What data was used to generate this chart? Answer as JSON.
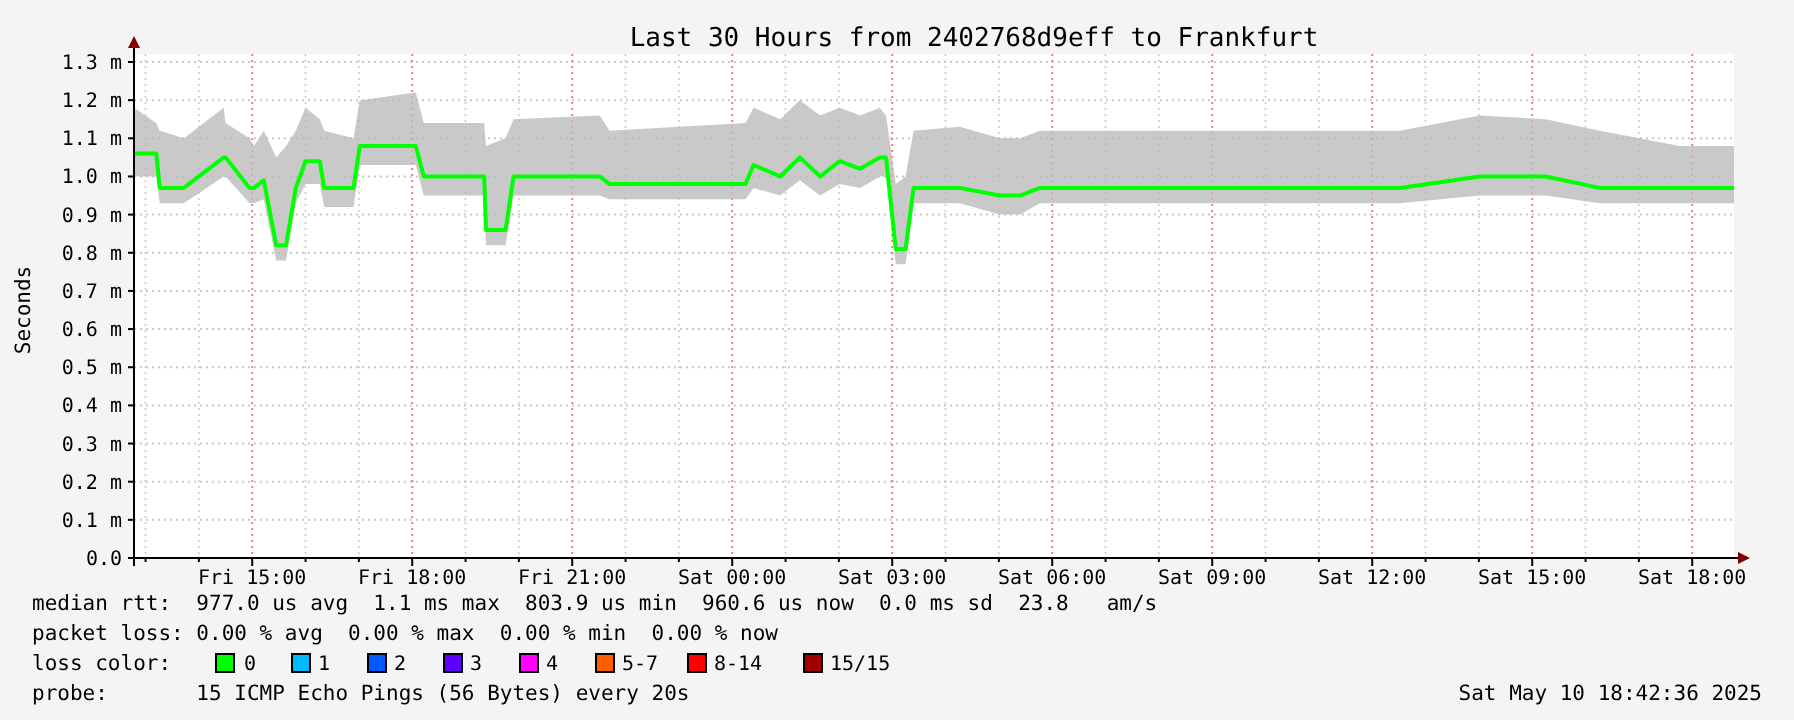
{
  "chart_data": {
    "type": "line",
    "title": "Last 30 Hours from 2402768d9eff to Frankfurt",
    "ylabel": "Seconds",
    "x": [
      "2025-05-09T12:47",
      "2025-05-09T13:12",
      "2025-05-09T13:16",
      "2025-05-09T13:43",
      "2025-05-09T14:28",
      "2025-05-09T14:30",
      "2025-05-09T14:57",
      "2025-05-09T15:02",
      "2025-05-09T15:13",
      "2025-05-09T15:27",
      "2025-05-09T15:38",
      "2025-05-09T15:49",
      "2025-05-09T16:00",
      "2025-05-09T16:16",
      "2025-05-09T16:21",
      "2025-05-09T16:54",
      "2025-05-09T17:01",
      "2025-05-09T18:04",
      "2025-05-09T18:13",
      "2025-05-09T19:21",
      "2025-05-09T19:23",
      "2025-05-09T19:45",
      "2025-05-09T19:54",
      "2025-05-09T21:31",
      "2025-05-09T21:42",
      "2025-05-10T00:15",
      "2025-05-10T00:24",
      "2025-05-10T00:54",
      "2025-05-10T01:16",
      "2025-05-10T01:39",
      "2025-05-10T02:01",
      "2025-05-10T02:24",
      "2025-05-10T02:46",
      "2025-05-10T02:53",
      "2025-05-10T03:04",
      "2025-05-10T03:15",
      "2025-05-10T03:24",
      "2025-05-10T04:16",
      "2025-05-10T05:01",
      "2025-05-10T05:24",
      "2025-05-10T05:46",
      "2025-05-10T07:16",
      "2025-05-10T08:46",
      "2025-05-10T10:16",
      "2025-05-10T12:31",
      "2025-05-10T14:01",
      "2025-05-10T15:15",
      "2025-05-10T16:16",
      "2025-05-10T17:46",
      "2025-05-10T18:47"
    ],
    "series": [
      {
        "name": "0",
        "color": "#00ff00",
        "values": [
          1.06,
          1.06,
          0.97,
          0.97,
          1.05,
          1.05,
          0.97,
          0.97,
          0.99,
          0.82,
          0.82,
          0.97,
          1.04,
          1.04,
          0.97,
          0.97,
          1.08,
          1.08,
          1.0,
          1.0,
          0.86,
          0.86,
          1.0,
          1.0,
          0.98,
          0.98,
          1.03,
          1.0,
          1.05,
          1.0,
          1.04,
          1.02,
          1.05,
          1.05,
          0.81,
          0.81,
          0.97,
          0.97,
          0.95,
          0.95,
          0.97,
          0.97,
          0.97,
          0.97,
          0.97,
          1.0,
          1.0,
          0.97,
          0.97,
          0.97
        ],
        "lower": [
          1.0,
          1.0,
          0.93,
          0.93,
          1.0,
          1.0,
          0.93,
          0.93,
          0.94,
          0.78,
          0.78,
          0.93,
          0.98,
          0.98,
          0.92,
          0.92,
          1.03,
          1.03,
          0.95,
          0.95,
          0.82,
          0.82,
          0.95,
          0.95,
          0.94,
          0.94,
          0.97,
          0.95,
          0.99,
          0.95,
          0.98,
          0.97,
          1.0,
          1.0,
          0.77,
          0.77,
          0.93,
          0.93,
          0.9,
          0.9,
          0.93,
          0.93,
          0.93,
          0.93,
          0.93,
          0.95,
          0.95,
          0.93,
          0.93,
          0.93
        ],
        "upper": [
          1.18,
          1.14,
          1.12,
          1.1,
          1.18,
          1.14,
          1.1,
          1.08,
          1.12,
          1.05,
          1.08,
          1.12,
          1.18,
          1.15,
          1.12,
          1.1,
          1.2,
          1.22,
          1.14,
          1.14,
          1.08,
          1.1,
          1.15,
          1.16,
          1.12,
          1.14,
          1.18,
          1.15,
          1.2,
          1.16,
          1.18,
          1.16,
          1.18,
          1.16,
          0.98,
          1.0,
          1.12,
          1.13,
          1.1,
          1.1,
          1.12,
          1.12,
          1.12,
          1.12,
          1.12,
          1.16,
          1.15,
          1.12,
          1.08,
          1.08
        ]
      }
    ],
    "xlim": [
      "2025-05-09T12:47",
      "2025-05-10T18:47"
    ],
    "xticks": [
      {
        "value": "2025-05-09T13:00",
        "label": null
      },
      {
        "value": "2025-05-09T14:00",
        "label": null
      },
      {
        "value": "2025-05-09T15:00",
        "label": "Fri 15:00"
      },
      {
        "value": "2025-05-09T16:00",
        "label": null
      },
      {
        "value": "2025-05-09T17:00",
        "label": null
      },
      {
        "value": "2025-05-09T18:00",
        "label": "Fri 18:00"
      },
      {
        "value": "2025-05-09T19:00",
        "label": null
      },
      {
        "value": "2025-05-09T20:00",
        "label": null
      },
      {
        "value": "2025-05-09T21:00",
        "label": "Fri 21:00"
      },
      {
        "value": "2025-05-09T22:00",
        "label": null
      },
      {
        "value": "2025-05-09T23:00",
        "label": null
      },
      {
        "value": "2025-05-10T00:00",
        "label": "Sat 00:00"
      },
      {
        "value": "2025-05-10T01:00",
        "label": null
      },
      {
        "value": "2025-05-10T02:00",
        "label": null
      },
      {
        "value": "2025-05-10T03:00",
        "label": "Sat 03:00"
      },
      {
        "value": "2025-05-10T04:00",
        "label": null
      },
      {
        "value": "2025-05-10T05:00",
        "label": null
      },
      {
        "value": "2025-05-10T06:00",
        "label": "Sat 06:00"
      },
      {
        "value": "2025-05-10T07:00",
        "label": null
      },
      {
        "value": "2025-05-10T08:00",
        "label": null
      },
      {
        "value": "2025-05-10T09:00",
        "label": "Sat 09:00"
      },
      {
        "value": "2025-05-10T10:00",
        "label": null
      },
      {
        "value": "2025-05-10T11:00",
        "label": null
      },
      {
        "value": "2025-05-10T12:00",
        "label": "Sat 12:00"
      },
      {
        "value": "2025-05-10T13:00",
        "label": null
      },
      {
        "value": "2025-05-10T14:00",
        "label": null
      },
      {
        "value": "2025-05-10T15:00",
        "label": "Sat 15:00"
      },
      {
        "value": "2025-05-10T16:00",
        "label": null
      },
      {
        "value": "2025-05-10T17:00",
        "label": null
      },
      {
        "value": "2025-05-10T18:00",
        "label": "Sat 18:00"
      }
    ],
    "ylim": [
      0,
      1.3
    ],
    "yticks": [
      {
        "value": 0,
        "label": "0.0"
      },
      {
        "value": 0.1,
        "label": "0.1 m"
      },
      {
        "value": 0.2,
        "label": "0.2 m"
      },
      {
        "value": 0.3,
        "label": "0.3 m"
      },
      {
        "value": 0.4,
        "label": "0.4 m"
      },
      {
        "value": 0.5,
        "label": "0.5 m"
      },
      {
        "value": 0.6,
        "label": "0.6 m"
      },
      {
        "value": 0.7,
        "label": "0.7 m"
      },
      {
        "value": 0.8,
        "label": "0.8 m"
      },
      {
        "value": 0.9,
        "label": "0.9 m"
      },
      {
        "value": 1.0,
        "label": "1.0 m"
      },
      {
        "value": 1.1,
        "label": "1.1 m"
      },
      {
        "value": 1.2,
        "label": "1.2 m"
      },
      {
        "value": 1.3,
        "label": "1.3 m"
      }
    ],
    "grid": true,
    "legend": "bottom",
    "legend_title": "loss color:",
    "annotations": [
      "median rtt:  977.0 us avg  1.1 ms max  803.9 us min  960.6 us now  0.0 ms sd  23.8   am/s",
      "packet loss: 0.00 % avg  0.00 % max  0.00 % min  0.00 % now",
      "probe:       15 ICMP Echo Pings (56 Bytes) every 20s",
      "Sat May 10 18:42:36 2025",
      "1",
      "2",
      "3",
      "4",
      "5-7",
      "8-14",
      "15/15"
    ]
  }
}
